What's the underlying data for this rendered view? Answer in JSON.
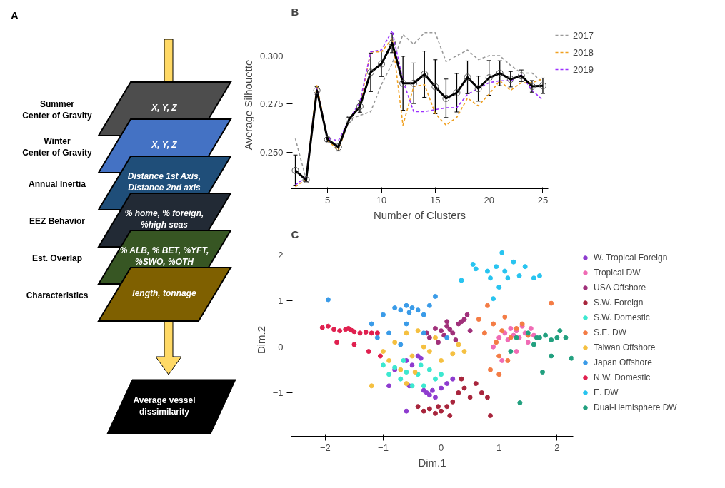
{
  "chart_data": [
    {
      "type": "other",
      "title": "A",
      "categories": [
        "Summer\nCenter of Gravity",
        "Winter\nCenter of Gravity",
        "Annual Inertia",
        "EEZ Behavior",
        "Est. Overlap",
        "Characteristics"
      ],
      "colors": [
        "#4d4d4d",
        "#4472c4",
        "#1f4e79",
        "#222a35",
        "#375623",
        "#7f6000",
        "#000000"
      ],
      "annotations": [
        "X, Y, Z",
        "X, Y, Z",
        "Distance 1st Axis,\nDistance 2nd axis",
        "% home,  % foreign,\n%high seas",
        "% ALB, % BET, %YFT,\n%SWO, %OTH",
        "length, tonnage",
        "Average vessel\ndissimilarity"
      ]
    },
    {
      "type": "line",
      "title": "B",
      "xlabel": "Number of Clusters",
      "ylabel": "Average Silhouette",
      "x": [
        2,
        3,
        4,
        5,
        6,
        7,
        8,
        9,
        10,
        11,
        12,
        13,
        14,
        15,
        16,
        17,
        18,
        19,
        20,
        21,
        22,
        23,
        24,
        25
      ],
      "xlim": [
        1.6,
        25.5
      ],
      "xticks": [
        5,
        10,
        15,
        20,
        25
      ],
      "ylim": [
        0.231,
        0.318
      ],
      "yticks": [
        {
          "value": 0.25,
          "label": "0.250"
        },
        {
          "value": 0.275,
          "label": "0.275"
        },
        {
          "value": 0.3,
          "label": "0.300"
        }
      ],
      "grid": false,
      "legend": "right",
      "series": [
        {
          "name": "2017",
          "color": "#999999",
          "line_style": "dashed",
          "marker": "none",
          "values": [
            0.257,
            0.236,
            0.282,
            0.257,
            0.253,
            0.267,
            0.269,
            0.271,
            0.285,
            0.296,
            0.311,
            0.306,
            0.312,
            0.312,
            0.297,
            0.3,
            0.303,
            0.298,
            0.3,
            0.3,
            0.295,
            0.291,
            0.291,
            0.286
          ]
        },
        {
          "name": "2018",
          "color": "#f0a020",
          "line_style": "dashed",
          "marker": "none",
          "values": [
            0.232,
            0.236,
            0.285,
            0.256,
            0.251,
            0.267,
            0.274,
            0.302,
            0.302,
            0.309,
            0.264,
            0.284,
            0.285,
            0.27,
            0.264,
            0.268,
            0.278,
            0.274,
            0.28,
            0.287,
            0.282,
            0.286,
            0.286,
            0.288
          ]
        },
        {
          "name": "2019",
          "color": "#9b30ff",
          "line_style": "dashed",
          "marker": "none",
          "values": [
            0.233,
            0.237,
            0.283,
            0.257,
            0.256,
            0.267,
            0.276,
            0.302,
            0.303,
            0.313,
            0.287,
            0.271,
            0.271,
            0.272,
            0.273,
            0.273,
            0.28,
            0.283,
            0.286,
            0.287,
            0.287,
            0.29,
            0.282,
            0.277
          ]
        },
        {
          "color": "#000000",
          "line_style": "solid",
          "marker": "circle",
          "values": [
            0.2405,
            0.2356,
            0.282,
            0.2565,
            0.2526,
            0.2671,
            0.2737,
            0.2914,
            0.2958,
            0.3066,
            0.2857,
            0.2857,
            0.2904,
            0.2839,
            0.2779,
            0.2808,
            0.2888,
            0.2829,
            0.2885,
            0.2909,
            0.2878,
            0.2896,
            0.2841,
            0.2844
          ],
          "errors": [
            0.008,
            0.001,
            0.002,
            0.001,
            0.002,
            0.001,
            0.003,
            0.01,
            0.0066,
            0.005,
            0.014,
            0.0105,
            0.012,
            0.014,
            0.01,
            0.01,
            0.0085,
            0.0065,
            0.009,
            0.0065,
            0.004,
            0.003,
            0.003,
            0.004
          ]
        }
      ]
    },
    {
      "type": "scatter",
      "title": "C",
      "xlabel": "Dim.1",
      "ylabel": "Dim.2",
      "xlim": [
        -2.59,
        2.28
      ],
      "xticks": [
        -2,
        -1,
        0,
        1,
        2
      ],
      "ylim": [
        -1.95,
        2.25
      ],
      "yticks": [
        -1,
        0,
        1,
        2
      ],
      "grid": false,
      "legend": "right",
      "marker": "circle",
      "series": [
        {
          "name": "W. Tropical Foreign",
          "color": "#8e3ccf",
          "x": [
            -0.9,
            -0.8,
            -0.6,
            -0.5,
            -0.4,
            -0.3,
            -0.25,
            -0.2,
            -0.15,
            -0.1,
            0,
            0.1,
            0.2,
            -0.55,
            -0.35,
            -0.6
          ],
          "values": [
            -0.85,
            -0.5,
            -0.3,
            -0.4,
            -0.2,
            -0.95,
            -1.0,
            -1.05,
            -0.95,
            -1.1,
            -0.9,
            -0.8,
            -0.7,
            -0.85,
            -0.25,
            -1.4
          ]
        },
        {
          "name": "Tropical DW",
          "color": "#f06bb5",
          "x": [
            0.9,
            1.0,
            1.1,
            1.15,
            1.2,
            1.25,
            1.3,
            1.35,
            1.4,
            1.45,
            1.5,
            1.55,
            1.6,
            1.05,
            1.3
          ],
          "values": [
            0.0,
            0.2,
            0.3,
            0.15,
            0.4,
            0.25,
            0.35,
            0.2,
            0.45,
            0.3,
            0.1,
            0.4,
            0.25,
            -0.3,
            -0.1
          ]
        },
        {
          "name": "USA Offshore",
          "color": "#a0307a",
          "x": [
            -0.25,
            -0.2,
            -0.1,
            0,
            0.05,
            0.1,
            0.15,
            0.2,
            0.3,
            0.35,
            0.4,
            0.45,
            -0.05,
            0.25,
            0.1,
            0.5
          ],
          "values": [
            0.3,
            0.2,
            0.4,
            0.35,
            0.25,
            0.45,
            0.38,
            0.3,
            0.5,
            0.55,
            0.6,
            0.7,
            0.1,
            0.15,
            0.55,
            0.35
          ]
        },
        {
          "name": "S.W. Foreign",
          "color": "#a8253c",
          "x": [
            -0.4,
            -0.3,
            -0.2,
            -0.1,
            0,
            0.1,
            0.2,
            0.3,
            0.4,
            0.5,
            0.6,
            0.7,
            0.8,
            -0.05,
            0.15,
            0.35,
            0.85
          ],
          "values": [
            -1.3,
            -1.4,
            -1.35,
            -1.45,
            -1.4,
            -1.3,
            -1.2,
            -1.0,
            -0.9,
            -1.1,
            -0.8,
            -1.0,
            -1.1,
            -1.3,
            -1.5,
            -0.7,
            -1.5
          ]
        },
        {
          "name": "S.W. Domestic",
          "color": "#3ce8d0",
          "x": [
            -1.0,
            -0.9,
            -0.8,
            -0.7,
            -0.6,
            -0.5,
            -0.4,
            -0.3,
            -0.2,
            -0.1,
            0,
            -0.65,
            -0.35
          ],
          "values": [
            -0.4,
            -0.6,
            -0.45,
            -0.7,
            -0.55,
            -0.85,
            -0.6,
            -0.85,
            -0.5,
            -0.7,
            -0.6,
            -0.3,
            -0.4
          ]
        },
        {
          "name": "S.E. DW",
          "color": "#f47c45",
          "x": [
            0.65,
            0.75,
            0.8,
            0.9,
            0.95,
            1.0,
            1.05,
            1.1,
            1.2,
            1.3,
            1.4,
            1.5,
            1.9,
            0.85,
            1.0,
            1.15
          ],
          "values": [
            0.6,
            0.3,
            0.9,
            0.5,
            0.1,
            -0.2,
            0.35,
            0.65,
            0.2,
            0.4,
            0.5,
            0.25,
            0.95,
            -0.5,
            -0.6,
            -0.3
          ]
        },
        {
          "name": "Taiwan Offshore",
          "color": "#f5c040",
          "x": [
            -1.0,
            -0.9,
            -0.8,
            -0.6,
            -0.5,
            -0.4,
            -0.3,
            -0.2,
            -0.1,
            0,
            0.2,
            0.3,
            0.4,
            -0.7,
            -0.6,
            -1.2,
            -0.45
          ],
          "values": [
            -0.1,
            -0.3,
            0.1,
            0.3,
            -0.2,
            0.35,
            0.0,
            -0.1,
            0.2,
            -0.3,
            -0.15,
            0.05,
            -0.1,
            -0.5,
            -0.8,
            -0.85,
            -0.55
          ]
        },
        {
          "name": "Japan Offshore",
          "color": "#3a9be8",
          "x": [
            -1.95,
            -1.2,
            -1.0,
            -0.8,
            -0.7,
            -0.6,
            -0.55,
            -0.5,
            -0.4,
            -0.3,
            -0.2,
            -0.1,
            -0.9,
            -0.6,
            -0.3,
            0.1,
            -1.1,
            -0.7
          ],
          "values": [
            1.03,
            0.5,
            0.7,
            0.85,
            0.8,
            0.9,
            0.75,
            0.85,
            0.8,
            0.7,
            0.9,
            1.1,
            0.3,
            0.5,
            0.3,
            0.2,
            0.2,
            0.05
          ]
        },
        {
          "name": "N.W. Domestic",
          "color": "#e0204f",
          "x": [
            -2.05,
            -1.95,
            -1.85,
            -1.75,
            -1.65,
            -1.6,
            -1.55,
            -1.5,
            -1.4,
            -1.3,
            -1.2,
            -1.1,
            -1.8,
            -1.5,
            -1.25,
            -1.05
          ],
          "values": [
            0.42,
            0.45,
            0.38,
            0.35,
            0.38,
            0.4,
            0.36,
            0.33,
            0.3,
            0.32,
            0.3,
            0.3,
            0.1,
            0.05,
            -0.1,
            -0.2
          ]
        },
        {
          "name": "E. DW",
          "color": "#28c4f0",
          "x": [
            0.35,
            0.55,
            0.6,
            0.8,
            0.85,
            0.95,
            1.0,
            1.1,
            1.15,
            1.25,
            1.35,
            1.45,
            1.6,
            1.7,
            1.05,
            0.9
          ],
          "values": [
            1.45,
            1.8,
            1.7,
            1.65,
            1.5,
            1.75,
            1.3,
            1.65,
            1.5,
            1.85,
            1.55,
            1.75,
            1.5,
            1.55,
            2.05,
            1.05
          ]
        },
        {
          "name": "Dual-Hemisphere DW",
          "color": "#22a07f",
          "x": [
            1.2,
            1.3,
            1.5,
            1.65,
            1.7,
            1.8,
            1.9,
            2.0,
            2.05,
            2.15,
            1.75,
            1.9,
            1.36,
            1.6,
            2.25
          ],
          "values": [
            -0.1,
            0.2,
            0.3,
            0.2,
            0.2,
            0.25,
            0.15,
            0.2,
            0.35,
            0.2,
            -0.55,
            -0.2,
            -1.22,
            0.05,
            -0.25
          ]
        }
      ]
    }
  ]
}
